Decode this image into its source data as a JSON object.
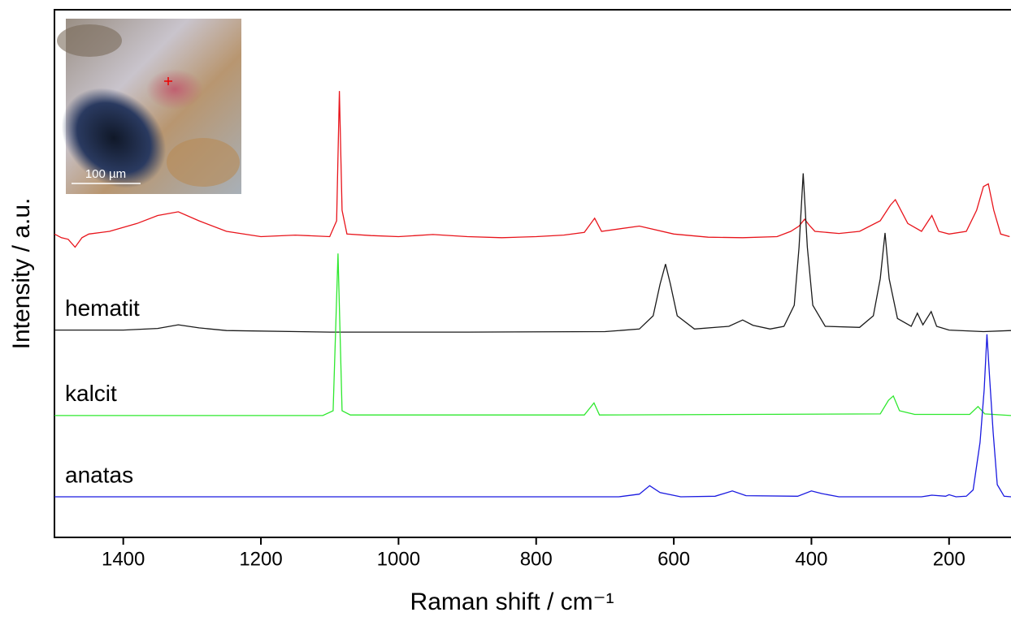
{
  "chart_data": {
    "type": "line",
    "xlabel": "Raman shift / cm⁻¹",
    "ylabel": "Intensity / a.u.",
    "xlim": [
      1500,
      110
    ],
    "ylim": [
      0,
      100
    ],
    "xticks": [
      1400,
      1200,
      1000,
      800,
      600,
      400,
      200
    ],
    "annotations": [
      "100 µm"
    ],
    "series": [
      {
        "color": "#e8141b",
        "x": [
          1500,
          1490,
          1480,
          1470,
          1460,
          1450,
          1420,
          1380,
          1350,
          1320,
          1290,
          1250,
          1200,
          1150,
          1100,
          1090,
          1086,
          1082,
          1075,
          1040,
          1000,
          950,
          900,
          850,
          800,
          760,
          730,
          715,
          705,
          650,
          600,
          550,
          500,
          450,
          430,
          418,
          410,
          402,
          395,
          360,
          330,
          300,
          285,
          278,
          260,
          240,
          225,
          215,
          200,
          175,
          160,
          150,
          143,
          135,
          125,
          112
        ],
        "values": [
          57.5,
          56.8,
          56.5,
          55,
          56.8,
          57.5,
          58,
          59.5,
          61,
          61.7,
          60,
          58,
          57,
          57.3,
          57,
          60,
          84.6,
          62,
          57.5,
          57.2,
          57,
          57.4,
          57,
          56.8,
          57,
          57.3,
          57.8,
          60.5,
          58,
          59,
          57.5,
          56.9,
          56.8,
          57,
          58,
          59,
          60.3,
          59,
          58,
          57.6,
          58,
          60,
          63,
          64,
          59.5,
          58,
          61,
          58,
          57.5,
          58,
          62,
          66.5,
          67,
          62,
          57.5,
          57
        ]
      },
      {
        "name": "hematit",
        "color": "#1a1a1a",
        "x": [
          1500,
          1400,
          1350,
          1320,
          1290,
          1250,
          1100,
          900,
          700,
          650,
          630,
          620,
          612,
          605,
          595,
          570,
          520,
          500,
          485,
          460,
          440,
          425,
          418,
          412,
          406,
          398,
          380,
          330,
          310,
          300,
          293,
          287,
          275,
          255,
          246,
          238,
          226,
          218,
          200,
          150,
          110
        ],
        "values": [
          39.3,
          39.3,
          39.6,
          40.3,
          39.7,
          39.2,
          38.9,
          38.9,
          39,
          39.5,
          42,
          48,
          51.8,
          48,
          42,
          39.5,
          40,
          41.2,
          40.2,
          39.5,
          40,
          44,
          55,
          69,
          55,
          44,
          40,
          39.8,
          42,
          49,
          57.7,
          49,
          41.5,
          40,
          42.5,
          40.3,
          42.8,
          40,
          39.3,
          39,
          39.2
        ]
      },
      {
        "name": "kalcit",
        "color": "#2ee82e",
        "x": [
          1500,
          1110,
          1095,
          1088,
          1082,
          1070,
          730,
          716,
          708,
          300,
          288,
          281,
          272,
          250,
          170,
          158,
          148,
          110
        ],
        "values": [
          23.1,
          23.1,
          24,
          53.8,
          24,
          23.2,
          23.2,
          25.5,
          23.2,
          23.4,
          26,
          26.8,
          24,
          23.3,
          23.3,
          24.8,
          23.4,
          23.1
        ]
      },
      {
        "name": "anatas",
        "color": "#1a1ae0",
        "x": [
          1500,
          680,
          650,
          635,
          620,
          590,
          540,
          515,
          495,
          420,
          400,
          385,
          360,
          240,
          225,
          205,
          200,
          190,
          175,
          165,
          155,
          149,
          145,
          141,
          136,
          130,
          120,
          110
        ],
        "values": [
          7.7,
          7.7,
          8.2,
          9.8,
          8.5,
          7.7,
          7.8,
          8.8,
          7.9,
          7.8,
          8.8,
          8.3,
          7.7,
          7.7,
          8,
          7.8,
          8.1,
          7.7,
          7.8,
          9,
          18,
          28,
          38.5,
          30,
          20,
          10,
          7.8,
          7.7
        ]
      }
    ]
  }
}
